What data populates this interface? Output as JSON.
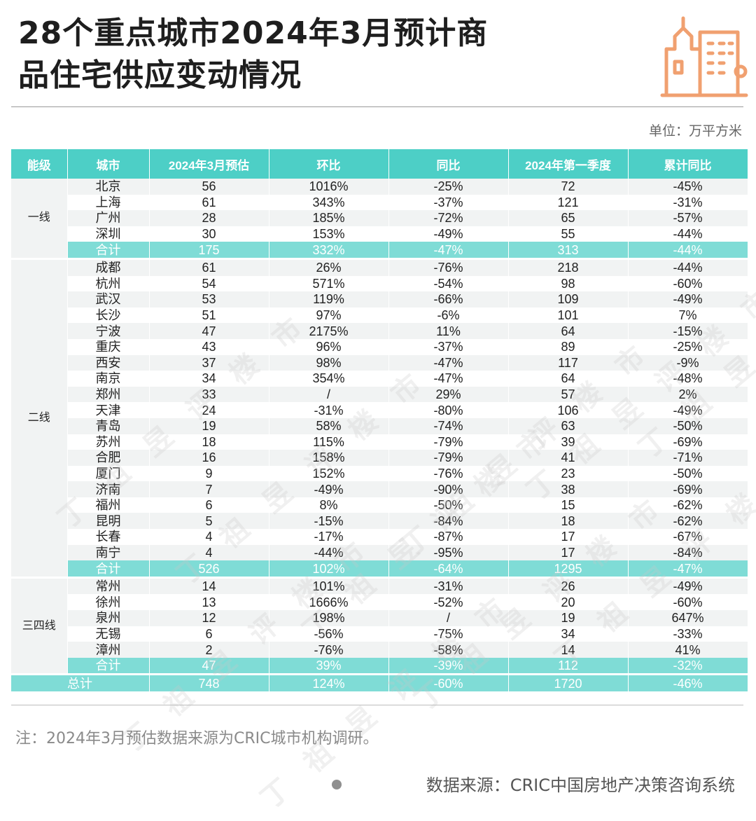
{
  "title_lines": [
    "28个重点城市2024年3月预计商",
    "品住宅供应变动情况"
  ],
  "unit": "单位：万平方米",
  "columns": [
    "能级",
    "城市",
    "2024年3月预估",
    "环比",
    "同比",
    "2024年第一季度",
    "累计同比"
  ],
  "tiers": [
    {
      "name": "一线",
      "rows": [
        [
          "北京",
          "56",
          "1016%",
          "-25%",
          "72",
          "-45%"
        ],
        [
          "上海",
          "61",
          "343%",
          "-37%",
          "121",
          "-31%"
        ],
        [
          "广州",
          "28",
          "185%",
          "-72%",
          "65",
          "-57%"
        ],
        [
          "深圳",
          "30",
          "153%",
          "-49%",
          "55",
          "-44%"
        ]
      ],
      "subtotal": [
        "合计",
        "175",
        "332%",
        "-47%",
        "313",
        "-44%"
      ]
    },
    {
      "name": "二线",
      "rows": [
        [
          "成都",
          "61",
          "26%",
          "-76%",
          "218",
          "-44%"
        ],
        [
          "杭州",
          "54",
          "571%",
          "-54%",
          "98",
          "-60%"
        ],
        [
          "武汉",
          "53",
          "119%",
          "-66%",
          "109",
          "-49%"
        ],
        [
          "长沙",
          "51",
          "97%",
          "-6%",
          "101",
          "7%"
        ],
        [
          "宁波",
          "47",
          "2175%",
          "11%",
          "64",
          "-15%"
        ],
        [
          "重庆",
          "43",
          "96%",
          "-37%",
          "89",
          "-25%"
        ],
        [
          "西安",
          "37",
          "98%",
          "-47%",
          "117",
          "-9%"
        ],
        [
          "南京",
          "34",
          "354%",
          "-47%",
          "64",
          "-48%"
        ],
        [
          "郑州",
          "33",
          "/",
          "29%",
          "57",
          "2%"
        ],
        [
          "天津",
          "24",
          "-31%",
          "-80%",
          "106",
          "-49%"
        ],
        [
          "青岛",
          "19",
          "58%",
          "-74%",
          "63",
          "-50%"
        ],
        [
          "苏州",
          "18",
          "115%",
          "-79%",
          "39",
          "-69%"
        ],
        [
          "合肥",
          "16",
          "158%",
          "-79%",
          "41",
          "-71%"
        ],
        [
          "厦门",
          "9",
          "152%",
          "-76%",
          "23",
          "-50%"
        ],
        [
          "济南",
          "7",
          "-49%",
          "-90%",
          "38",
          "-69%"
        ],
        [
          "福州",
          "6",
          "8%",
          "-50%",
          "15",
          "-62%"
        ],
        [
          "昆明",
          "5",
          "-15%",
          "-84%",
          "18",
          "-62%"
        ],
        [
          "长春",
          "4",
          "-17%",
          "-87%",
          "17",
          "-67%"
        ],
        [
          "南宁",
          "4",
          "-44%",
          "-95%",
          "17",
          "-84%"
        ]
      ],
      "subtotal": [
        "合计",
        "526",
        "102%",
        "-64%",
        "1295",
        "-47%"
      ]
    },
    {
      "name": "三四线",
      "rows": [
        [
          "常州",
          "14",
          "101%",
          "-31%",
          "26",
          "-49%"
        ],
        [
          "徐州",
          "13",
          "1666%",
          "-52%",
          "20",
          "-60%"
        ],
        [
          "泉州",
          "12",
          "198%",
          "/",
          "19",
          "647%"
        ],
        [
          "无锡",
          "6",
          "-56%",
          "-75%",
          "34",
          "-33%"
        ],
        [
          "漳州",
          "2",
          "-76%",
          "-58%",
          "14",
          "41%"
        ]
      ],
      "subtotal": [
        "合计",
        "47",
        "39%",
        "-39%",
        "112",
        "-32%"
      ]
    }
  ],
  "grand_total": [
    "总计",
    "748",
    "124%",
    "-60%",
    "1720",
    "-46%"
  ],
  "note": "注：2024年3月预估数据来源为CRIC城市机构调研。",
  "source": "数据来源：CRIC中国房地产决策咨询系统",
  "watermark_chars": [
    "丁",
    "祖",
    "昱",
    "评",
    "楼",
    "市"
  ],
  "colors": {
    "header": "#4dcfc6",
    "subtotal": "#7fdcd6",
    "zebra": "#f1f3f3",
    "logo": "#f0a070"
  }
}
